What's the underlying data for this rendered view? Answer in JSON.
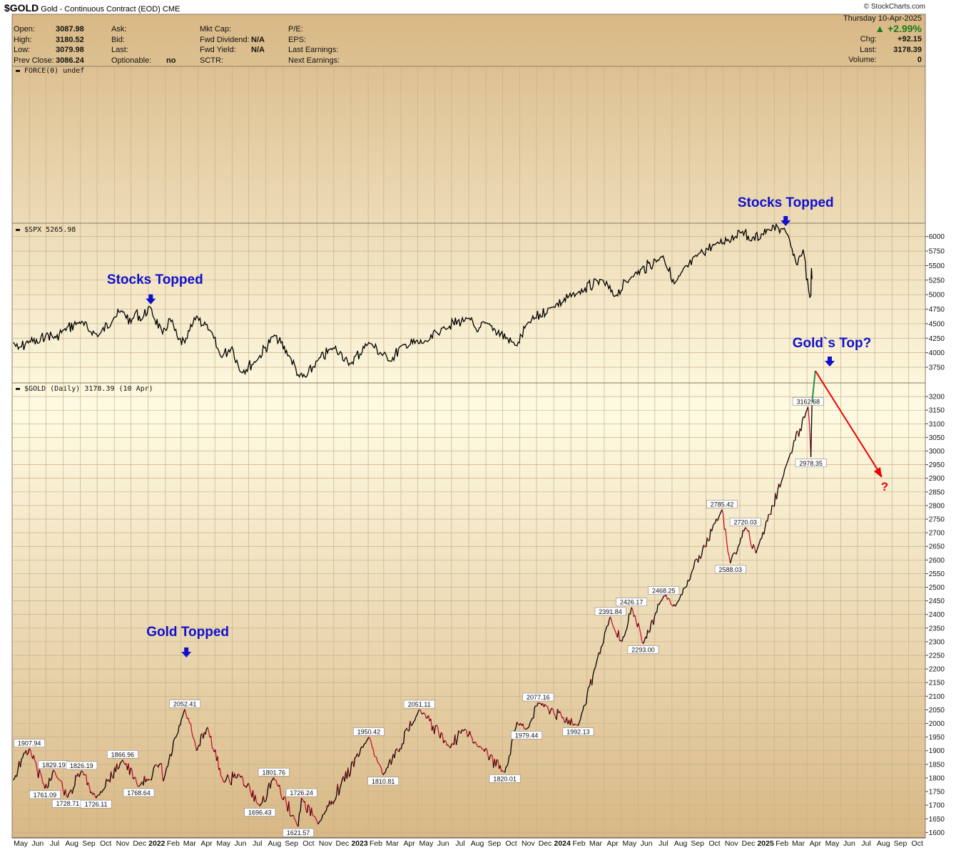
{
  "header": {
    "symbol": "$GOLD",
    "description": "Gold - Continuous Contract (EOD)",
    "exchange": "CME",
    "brand": "© StockCharts.com",
    "date": "Thursday  10-Apr-2025",
    "change_pct": "+2.99%",
    "fields_left": [
      {
        "label": "Open:",
        "value": "3087.98"
      },
      {
        "label": "High:",
        "value": "3180.52"
      },
      {
        "label": "Low:",
        "value": "3079.98"
      },
      {
        "label": "Prev Close:",
        "value": "3086.24"
      }
    ],
    "fields_mid1": [
      {
        "label": "Ask:",
        "value": ""
      },
      {
        "label": "Bid:",
        "value": ""
      },
      {
        "label": "Last:",
        "value": ""
      },
      {
        "label": "Optionable:",
        "value": "no"
      }
    ],
    "fields_mid2": [
      {
        "label": "Mkt Cap:",
        "value": ""
      },
      {
        "label": "Fwd Dividend:",
        "value": "N/A"
      },
      {
        "label": "Fwd Yield:",
        "value": "N/A"
      },
      {
        "label": "SCTR:",
        "value": ""
      }
    ],
    "fields_mid3": [
      {
        "label": "P/E:",
        "value": ""
      },
      {
        "label": "EPS:",
        "value": ""
      },
      {
        "label": "Last Earnings:",
        "value": ""
      },
      {
        "label": "Next Earnings:",
        "value": ""
      }
    ],
    "fields_right": [
      {
        "label": "Chg:",
        "value": "+92.15"
      },
      {
        "label": "Last:",
        "value": "3178.39"
      },
      {
        "label": "Volume:",
        "value": "0"
      }
    ]
  },
  "chart_data": [
    {
      "panel": "force",
      "type": "line",
      "label": "FORCE(0) undef",
      "values": []
    },
    {
      "panel": "spx",
      "type": "line",
      "label": "$SPX 5265.98",
      "yticks": [
        3750,
        4000,
        4250,
        4500,
        4750,
        5000,
        5250,
        5500,
        5750,
        6000
      ],
      "ylim": [
        3480,
        6230
      ],
      "series": [
        {
          "points": [
            [
              "2021-05-03",
              4180
            ],
            [
              "2021-05-12",
              4063
            ],
            [
              "2021-06-01",
              4202
            ],
            [
              "2021-06-18",
              4166
            ],
            [
              "2021-07-01",
              4320
            ],
            [
              "2021-07-19",
              4258
            ],
            [
              "2021-08-02",
              4390
            ],
            [
              "2021-08-30",
              4528
            ],
            [
              "2021-09-20",
              4358
            ],
            [
              "2021-10-04",
              4300
            ],
            [
              "2021-11-01",
              4614
            ],
            [
              "2021-11-18",
              4704
            ],
            [
              "2021-12-01",
              4513
            ],
            [
              "2021-12-10",
              4712
            ],
            [
              "2021-12-20",
              4568
            ],
            [
              "2022-01-03",
              4796
            ],
            [
              "2022-01-27",
              4326
            ],
            [
              "2022-02-09",
              4587
            ],
            [
              "2022-02-24",
              4225
            ],
            [
              "2022-03-08",
              4170
            ],
            [
              "2022-03-29",
              4631
            ],
            [
              "2022-04-21",
              4393
            ],
            [
              "2022-05-12",
              3930
            ],
            [
              "2022-06-01",
              4101
            ],
            [
              "2022-06-16",
              3666
            ],
            [
              "2022-07-15",
              3863
            ],
            [
              "2022-08-16",
              4305
            ],
            [
              "2022-09-13",
              3932
            ],
            [
              "2022-09-30",
              3585
            ],
            [
              "2022-10-12",
              3577
            ],
            [
              "2022-11-01",
              3856
            ],
            [
              "2022-11-30",
              4080
            ],
            [
              "2022-12-13",
              4019
            ],
            [
              "2022-12-28",
              3783
            ],
            [
              "2023-02-02",
              4179
            ],
            [
              "2023-03-13",
              3855
            ],
            [
              "2023-04-03",
              4124
            ],
            [
              "2023-05-19",
              4191
            ],
            [
              "2023-06-15",
              4425
            ],
            [
              "2023-07-31",
              4589
            ],
            [
              "2023-08-18",
              4370
            ],
            [
              "2023-09-01",
              4515
            ],
            [
              "2023-10-27",
              4117
            ],
            [
              "2023-11-14",
              4495
            ],
            [
              "2023-12-28",
              4783
            ],
            [
              "2024-02-12",
              5021
            ],
            [
              "2024-03-28",
              5254
            ],
            [
              "2024-04-19",
              4967
            ],
            [
              "2024-05-20",
              5308
            ],
            [
              "2024-07-16",
              5667
            ],
            [
              "2024-08-05",
              5186
            ],
            [
              "2024-09-19",
              5713
            ],
            [
              "2024-10-18",
              5864
            ],
            [
              "2024-12-06",
              6090
            ],
            [
              "2024-12-20",
              5930
            ],
            [
              "2025-01-23",
              6118
            ],
            [
              "2025-02-19",
              6144
            ],
            [
              "2025-03-13",
              5521
            ],
            [
              "2025-03-25",
              5776
            ],
            [
              "2025-04-04",
              5074
            ],
            [
              "2025-04-08",
              4982
            ],
            [
              "2025-04-09",
              5456
            ],
            [
              "2025-04-10",
              5266
            ]
          ]
        }
      ],
      "annotations": [
        {
          "text": "Stocks Topped",
          "date": "2022-01-03",
          "value": 4796
        },
        {
          "text": "Stocks Topped",
          "date": "2025-02-19",
          "value": 6144
        }
      ]
    },
    {
      "panel": "gold",
      "type": "line",
      "label": "$GOLD (Daily) 3178.39 (10 Apr)",
      "yticks": [
        1600,
        1650,
        1700,
        1750,
        1800,
        1850,
        1900,
        1950,
        2000,
        2050,
        2100,
        2150,
        2200,
        2250,
        2300,
        2350,
        2400,
        2450,
        2500,
        2550,
        2600,
        2650,
        2700,
        2750,
        2800,
        2850,
        2900,
        2950,
        3000,
        3050,
        3100,
        3150,
        3200
      ],
      "ylim": [
        1580,
        3250
      ],
      "series": [
        {
          "name": "up",
          "color": "#000000",
          "points": []
        },
        {
          "name": "down",
          "color": "#c8102e",
          "points": [
            [
              "2021-05-03",
              1792
            ],
            [
              "2021-05-20",
              1875
            ],
            [
              "2021-06-01",
              1907.94
            ],
            [
              "2021-06-29",
              1761.09
            ],
            [
              "2021-07-15",
              1829.19
            ],
            [
              "2021-08-09",
              1728.71
            ],
            [
              "2021-09-03",
              1826.19
            ],
            [
              "2021-09-29",
              1726.11
            ],
            [
              "2021-11-16",
              1866.96
            ],
            [
              "2021-12-15",
              1768.64
            ],
            [
              "2022-01-25",
              1853
            ],
            [
              "2022-01-28",
              1788
            ],
            [
              "2022-03-08",
              2052.41
            ],
            [
              "2022-03-29",
              1900
            ],
            [
              "2022-04-18",
              1986
            ],
            [
              "2022-05-16",
              1787
            ],
            [
              "2022-06-14",
              1812
            ],
            [
              "2022-07-21",
              1696.43
            ],
            [
              "2022-08-15",
              1801.76
            ],
            [
              "2022-09-28",
              1621.57
            ],
            [
              "2022-10-04",
              1726.24
            ],
            [
              "2022-11-03",
              1630
            ],
            [
              "2023-02-02",
              1950.42
            ],
            [
              "2023-02-28",
              1810.81
            ],
            [
              "2023-05-04",
              2051.11
            ],
            [
              "2023-06-29",
              1910
            ],
            [
              "2023-07-20",
              1978
            ],
            [
              "2023-08-21",
              1915
            ],
            [
              "2023-10-05",
              1820.01
            ],
            [
              "2023-10-27",
              2006
            ],
            [
              "2023-11-13",
              1979.44
            ],
            [
              "2023-12-04",
              2077.16
            ],
            [
              "2024-02-14",
              1992.13
            ],
            [
              "2024-04-12",
              2391.84
            ],
            [
              "2024-05-03",
              2300
            ],
            [
              "2024-05-20",
              2426.17
            ],
            [
              "2024-06-10",
              2293.0
            ],
            [
              "2024-07-17",
              2468.25
            ],
            [
              "2024-08-07",
              2430
            ],
            [
              "2024-10-30",
              2785.42
            ],
            [
              "2024-11-14",
              2588.03
            ],
            [
              "2024-12-11",
              2720.03
            ],
            [
              "2024-12-30",
              2625
            ],
            [
              "2025-02-24",
              2955
            ],
            [
              "2025-04-03",
              3162.68
            ],
            [
              "2025-04-08",
              2978.35
            ],
            [
              "2025-04-10",
              3178.39
            ]
          ]
        }
      ],
      "labels": [
        {
          "text": "1907.94",
          "date": "2021-06-01",
          "value": 1907.94,
          "pos": "above"
        },
        {
          "text": "1761.09",
          "date": "2021-06-29",
          "value": 1761.09,
          "pos": "below"
        },
        {
          "text": "1829.19",
          "date": "2021-07-15",
          "value": 1829.19,
          "pos": "above"
        },
        {
          "text": "1728.71",
          "date": "2021-08-09",
          "value": 1728.71,
          "pos": "below"
        },
        {
          "text": "1826.19",
          "date": "2021-09-03",
          "value": 1826.19,
          "pos": "above"
        },
        {
          "text": "1726.11",
          "date": "2021-09-29",
          "value": 1726.11,
          "pos": "below"
        },
        {
          "text": "1866.96",
          "date": "2021-11-16",
          "value": 1866.96,
          "pos": "above"
        },
        {
          "text": "1768.64",
          "date": "2021-12-15",
          "value": 1768.64,
          "pos": "below"
        },
        {
          "text": "2052.41",
          "date": "2022-03-08",
          "value": 2052.41,
          "pos": "above"
        },
        {
          "text": "1696.43",
          "date": "2022-07-21",
          "value": 1696.43,
          "pos": "below"
        },
        {
          "text": "1801.76",
          "date": "2022-08-15",
          "value": 1801.76,
          "pos": "above"
        },
        {
          "text": "1621.57",
          "date": "2022-09-28",
          "value": 1621.57,
          "pos": "below"
        },
        {
          "text": "1726.24",
          "date": "2022-10-04",
          "value": 1726.24,
          "pos": "above"
        },
        {
          "text": "1950.42",
          "date": "2023-02-02",
          "value": 1950.42,
          "pos": "above"
        },
        {
          "text": "1810.81",
          "date": "2023-02-28",
          "value": 1810.81,
          "pos": "below"
        },
        {
          "text": "2051.11",
          "date": "2023-05-04",
          "value": 2051.11,
          "pos": "above"
        },
        {
          "text": "1820.01",
          "date": "2023-10-05",
          "value": 1820.01,
          "pos": "below"
        },
        {
          "text": "1979.44",
          "date": "2023-11-13",
          "value": 1979.44,
          "pos": "below"
        },
        {
          "text": "2077.16",
          "date": "2023-12-04",
          "value": 2077.16,
          "pos": "above"
        },
        {
          "text": "1992.13",
          "date": "2024-02-14",
          "value": 1992.13,
          "pos": "below"
        },
        {
          "text": "2391.84",
          "date": "2024-04-12",
          "value": 2391.84,
          "pos": "above"
        },
        {
          "text": "2426.17",
          "date": "2024-05-20",
          "value": 2426.17,
          "pos": "above"
        },
        {
          "text": "2293.00",
          "date": "2024-06-10",
          "value": 2293.0,
          "pos": "below"
        },
        {
          "text": "2468.25",
          "date": "2024-07-17",
          "value": 2468.25,
          "pos": "above"
        },
        {
          "text": "2785.42",
          "date": "2024-10-30",
          "value": 2785.42,
          "pos": "above"
        },
        {
          "text": "2720.03",
          "date": "2024-12-11",
          "value": 2720.03,
          "pos": "above"
        },
        {
          "text": "2588.03",
          "date": "2024-11-14",
          "value": 2588.03,
          "pos": "below"
        },
        {
          "text": "3162.68",
          "date": "2025-04-03",
          "value": 3162.68,
          "pos": "above"
        },
        {
          "text": "2978.35",
          "date": "2025-04-08",
          "value": 2978.35,
          "pos": "below"
        }
      ],
      "annotations": [
        {
          "text": "Gold Topped",
          "date": "2022-03-08",
          "value": 2052.41
        },
        {
          "text": "Gold`s Top?",
          "date": "2025-04-10",
          "value": 3178.39
        },
        {
          "text": "?",
          "date": "2025-08-05",
          "value": 2760
        }
      ]
    }
  ],
  "x_axis": {
    "range": [
      "2021-05-01",
      "2025-10-31"
    ],
    "month_labels": [
      "May",
      "Jun",
      "Jul",
      "Aug",
      "Sep",
      "Oct",
      "Nov",
      "Dec",
      "2022",
      "Feb",
      "Mar",
      "Apr",
      "May",
      "Jun",
      "Jul",
      "Aug",
      "Sep",
      "Oct",
      "Nov",
      "Dec",
      "2023",
      "Feb",
      "Mar",
      "Apr",
      "May",
      "Jun",
      "Jul",
      "Aug",
      "Sep",
      "Oct",
      "Nov",
      "Dec",
      "2024",
      "Feb",
      "Mar",
      "Apr",
      "May",
      "Jun",
      "Jul",
      "Aug",
      "Sep",
      "Oct",
      "Nov",
      "Dec",
      "2025",
      "Feb",
      "Mar",
      "Apr",
      "May",
      "Jun",
      "Jul",
      "Aug",
      "Sep",
      "Oct"
    ]
  },
  "colors": {
    "background_top": "#d8b885",
    "background_mid": "#fffbe3",
    "line": "#000000",
    "down": "#c8102e",
    "annotation": "#1010cc",
    "arrow": "#ee0000",
    "projection": "#2e8b57"
  }
}
